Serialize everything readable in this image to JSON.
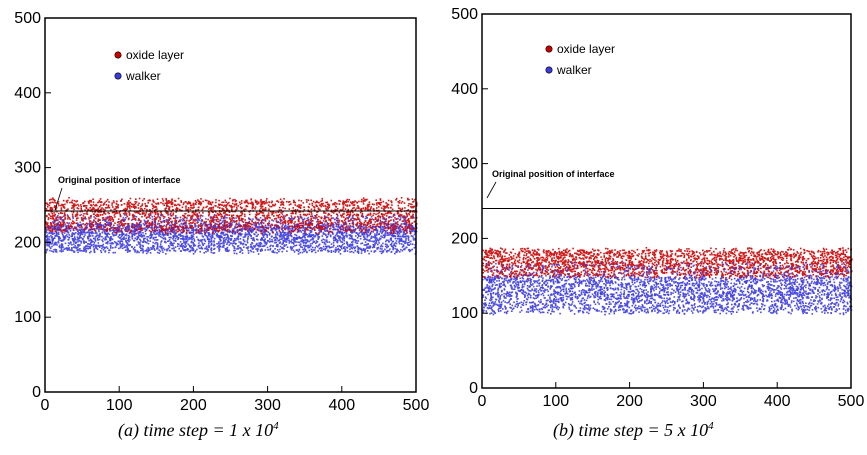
{
  "captions": [
    {
      "text": "(a) time step = 1 x 10",
      "exp": "4"
    },
    {
      "text": "(b) time step = 5 x 10",
      "exp": "4"
    }
  ],
  "chart_data": [
    {
      "type": "scatter",
      "title": "",
      "xlabel": "",
      "ylabel": "",
      "xlim": [
        0,
        500
      ],
      "ylim": [
        0,
        500
      ],
      "xticks": [
        0,
        100,
        200,
        300,
        400,
        500
      ],
      "yticks": [
        0,
        100,
        200,
        300,
        400,
        500
      ],
      "grid": false,
      "legend_position": "top-left",
      "series": [
        {
          "name": "oxide layer",
          "color": "#cc0000",
          "y_range": [
            215,
            258
          ]
        },
        {
          "name": "walker",
          "color": "#3a3adf",
          "y_range": [
            188,
            225
          ]
        }
      ],
      "reference_line": {
        "y": 242,
        "label": "Original position of interface"
      }
    },
    {
      "type": "scatter",
      "title": "",
      "xlabel": "",
      "ylabel": "",
      "xlim": [
        0,
        500
      ],
      "ylim": [
        0,
        500
      ],
      "xticks": [
        0,
        100,
        200,
        300,
        400,
        500
      ],
      "yticks": [
        0,
        100,
        200,
        300,
        400,
        500
      ],
      "grid": false,
      "legend_position": "top-left",
      "series": [
        {
          "name": "oxide layer",
          "color": "#cc0000",
          "y_range": [
            150,
            186
          ]
        },
        {
          "name": "walker",
          "color": "#3a3adf",
          "y_range": [
            102,
            150
          ]
        }
      ],
      "reference_line": {
        "y": 240,
        "label": "Original position of interface"
      }
    }
  ]
}
